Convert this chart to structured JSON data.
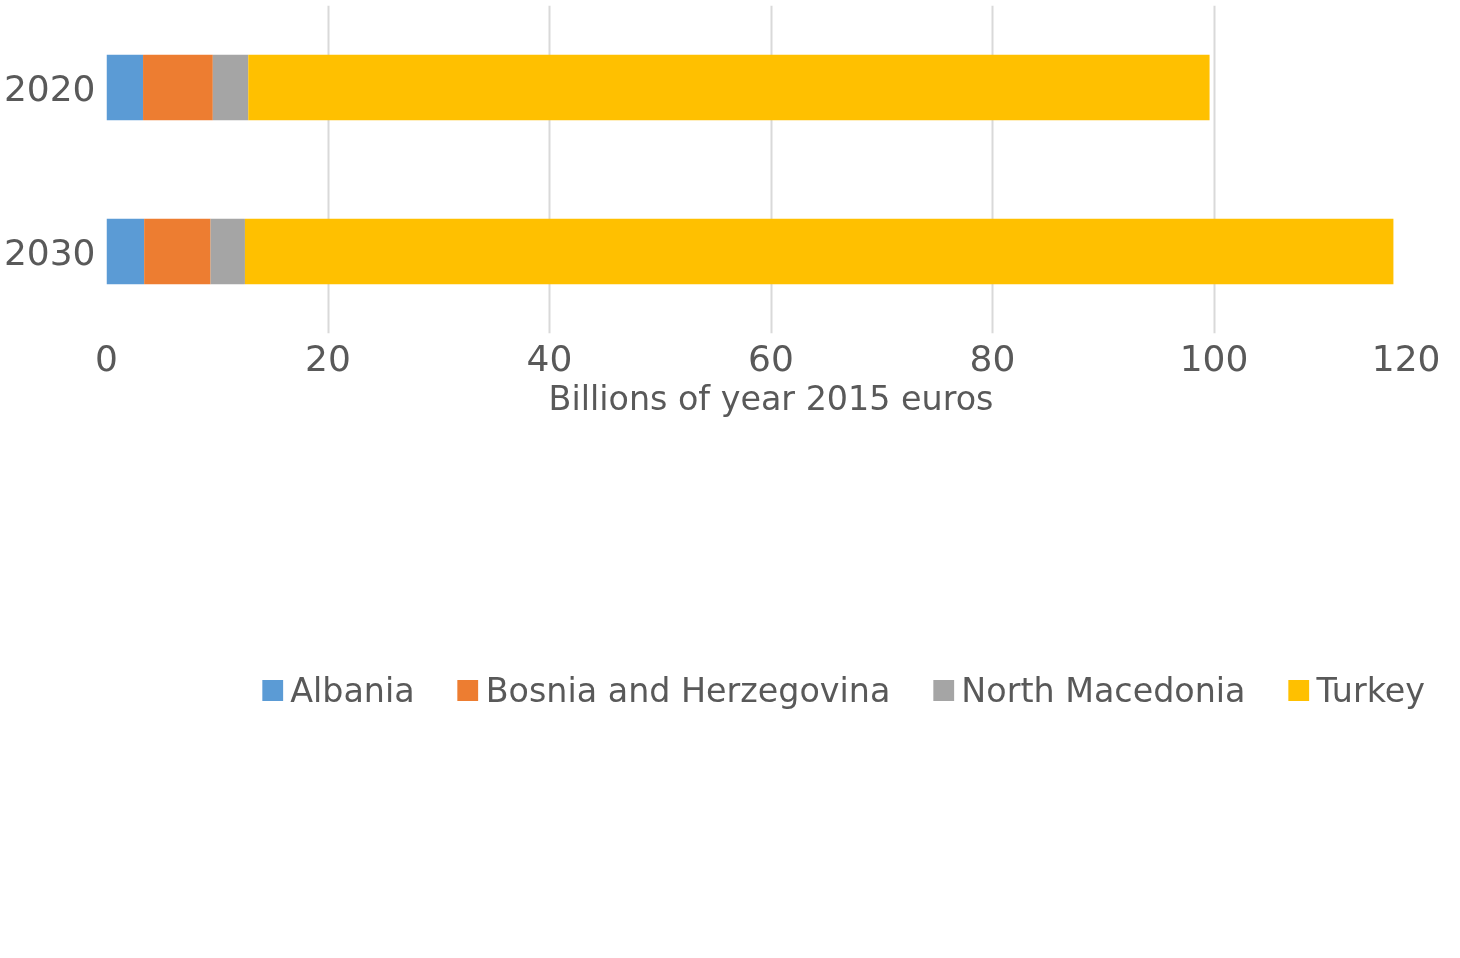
{
  "chart_data": {
    "type": "bar",
    "orientation": "horizontal",
    "stacked": true,
    "xlabel": "Billions of year 2015 euros",
    "categories": [
      "2020",
      "2030"
    ],
    "series": [
      {
        "name": "Albania",
        "color": "#5b9bd5",
        "values": [
          3.3,
          3.4
        ]
      },
      {
        "name": "Bosnia and Herzegovina",
        "color": "#ed7d31",
        "values": [
          6.3,
          6.0
        ]
      },
      {
        "name": "North Macedonia",
        "color": "#a5a5a5",
        "values": [
          3.2,
          3.1
        ]
      },
      {
        "name": "Turkey",
        "color": "#ffc000",
        "values": [
          86.8,
          103.7
        ]
      }
    ],
    "xlim": [
      0,
      120
    ],
    "xticks": [
      0,
      20,
      40,
      60,
      80,
      100,
      120
    ],
    "grid": "x",
    "legend": "bottom"
  }
}
